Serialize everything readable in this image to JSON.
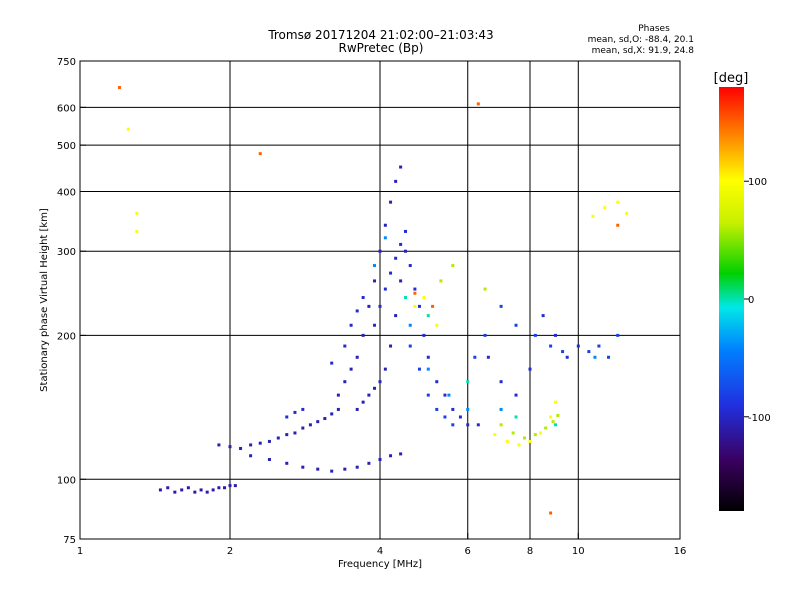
{
  "header": {
    "title": "Tromsø 20171204 21:02:00–21:03:43",
    "subtitle": "RwPretec (Bp)",
    "phases_title": "Phases",
    "phase_o": "mean, sd,O:  -88.4, 20.1",
    "phase_x": "mean, sd,X:  91.9, 24.8"
  },
  "chart_data": {
    "type": "scatter",
    "xlabel": "Frequency [MHz]",
    "ylabel": "Stationary phase Virtual Height [km]",
    "xscale": "log",
    "yscale": "log",
    "xlim": [
      1,
      16
    ],
    "ylim": [
      75,
      750
    ],
    "x_ticks": [
      1,
      2,
      4,
      6,
      8,
      10,
      16
    ],
    "y_ticks": [
      75,
      100,
      200,
      300,
      400,
      500,
      600,
      750
    ],
    "x_grid": [
      2,
      4,
      6,
      8,
      10
    ],
    "y_grid": [
      100,
      200,
      300,
      400,
      500,
      600
    ],
    "grid": true,
    "colorbar": {
      "label": "[deg]",
      "range": [
        -180,
        180
      ],
      "ticks": [
        -100,
        0,
        100
      ]
    },
    "series": [
      {
        "phase": -110,
        "points": [
          [
            1.45,
            95
          ],
          [
            1.5,
            96
          ],
          [
            1.6,
            95
          ],
          [
            1.7,
            94
          ],
          [
            1.8,
            94
          ],
          [
            1.9,
            96
          ],
          [
            2.0,
            97
          ],
          [
            1.55,
            94
          ],
          [
            1.65,
            96
          ],
          [
            1.75,
            95
          ],
          [
            1.85,
            95
          ],
          [
            1.95,
            96
          ],
          [
            2.05,
            97
          ]
        ]
      },
      {
        "phase": -105,
        "points": [
          [
            1.9,
            118
          ],
          [
            2.0,
            117
          ],
          [
            2.1,
            116
          ],
          [
            2.2,
            118
          ],
          [
            2.3,
            119
          ],
          [
            2.4,
            120
          ],
          [
            2.5,
            122
          ],
          [
            2.6,
            124
          ],
          [
            2.7,
            125
          ],
          [
            2.8,
            128
          ],
          [
            2.9,
            130
          ],
          [
            3.0,
            132
          ],
          [
            3.1,
            134
          ],
          [
            3.2,
            137
          ],
          [
            3.3,
            140
          ],
          [
            2.2,
            112
          ],
          [
            2.4,
            110
          ],
          [
            2.6,
            108
          ],
          [
            2.8,
            106
          ],
          [
            3.0,
            105
          ],
          [
            3.2,
            104
          ],
          [
            3.4,
            105
          ],
          [
            3.6,
            106
          ],
          [
            3.8,
            108
          ],
          [
            4.0,
            110
          ],
          [
            4.2,
            112
          ],
          [
            4.4,
            113
          ],
          [
            3.3,
            150
          ],
          [
            3.4,
            160
          ],
          [
            3.5,
            170
          ],
          [
            3.6,
            180
          ],
          [
            3.7,
            200
          ],
          [
            3.8,
            230
          ],
          [
            3.9,
            260
          ],
          [
            4.0,
            300
          ],
          [
            4.1,
            340
          ],
          [
            4.2,
            380
          ],
          [
            4.3,
            420
          ],
          [
            4.4,
            450
          ],
          [
            3.6,
            140
          ],
          [
            3.7,
            145
          ],
          [
            3.8,
            150
          ],
          [
            3.9,
            155
          ],
          [
            4.0,
            160
          ],
          [
            4.1,
            170
          ],
          [
            4.2,
            190
          ],
          [
            4.3,
            220
          ],
          [
            4.4,
            260
          ],
          [
            4.5,
            300
          ]
        ]
      },
      {
        "phase": -95,
        "points": [
          [
            2.6,
            135
          ],
          [
            2.7,
            138
          ],
          [
            2.8,
            140
          ],
          [
            3.2,
            175
          ],
          [
            3.4,
            190
          ],
          [
            3.5,
            210
          ],
          [
            3.6,
            225
          ],
          [
            3.7,
            240
          ],
          [
            3.9,
            210
          ],
          [
            4.0,
            230
          ],
          [
            4.1,
            250
          ],
          [
            4.2,
            270
          ],
          [
            4.3,
            290
          ],
          [
            4.4,
            310
          ],
          [
            4.5,
            330
          ],
          [
            4.6,
            280
          ],
          [
            4.7,
            250
          ],
          [
            4.8,
            230
          ],
          [
            4.9,
            200
          ],
          [
            5.0,
            180
          ],
          [
            5.2,
            160
          ],
          [
            5.4,
            150
          ],
          [
            5.6,
            140
          ],
          [
            5.8,
            135
          ],
          [
            6.0,
            130
          ],
          [
            6.3,
            130
          ],
          [
            6.6,
            180
          ],
          [
            7.0,
            160
          ],
          [
            7.5,
            150
          ],
          [
            8.0,
            170
          ],
          [
            8.5,
            220
          ],
          [
            9.0,
            200
          ],
          [
            9.5,
            180
          ],
          [
            10.0,
            190
          ]
        ]
      },
      {
        "phase": -80,
        "points": [
          [
            4.6,
            190
          ],
          [
            4.8,
            170
          ],
          [
            5.0,
            150
          ],
          [
            5.2,
            140
          ],
          [
            5.4,
            135
          ],
          [
            5.6,
            130
          ],
          [
            6.2,
            180
          ],
          [
            6.5,
            200
          ],
          [
            7.0,
            230
          ],
          [
            7.5,
            210
          ],
          [
            8.2,
            200
          ],
          [
            8.8,
            190
          ],
          [
            9.3,
            185
          ],
          [
            10.5,
            185
          ],
          [
            11.0,
            190
          ],
          [
            11.5,
            180
          ],
          [
            12.0,
            200
          ]
        ]
      },
      {
        "phase": -40,
        "points": [
          [
            3.9,
            280
          ],
          [
            4.1,
            320
          ],
          [
            4.6,
            210
          ],
          [
            5.0,
            170
          ],
          [
            5.5,
            150
          ],
          [
            6.0,
            140
          ],
          [
            7.0,
            140
          ],
          [
            10.8,
            180
          ]
        ]
      },
      {
        "phase": 0,
        "points": [
          [
            4.5,
            240
          ],
          [
            5.0,
            220
          ],
          [
            6.0,
            160
          ],
          [
            7.5,
            135
          ],
          [
            9.0,
            130
          ]
        ]
      },
      {
        "phase": 60,
        "points": [
          [
            5.3,
            260
          ],
          [
            5.6,
            280
          ],
          [
            6.5,
            250
          ],
          [
            7.0,
            130
          ],
          [
            7.4,
            125
          ],
          [
            7.8,
            122
          ],
          [
            8.2,
            124
          ],
          [
            8.6,
            128
          ],
          [
            8.9,
            132
          ],
          [
            9.1,
            136
          ]
        ]
      },
      {
        "phase": 100,
        "points": [
          [
            4.7,
            230
          ],
          [
            4.9,
            240
          ],
          [
            5.2,
            210
          ],
          [
            6.8,
            124
          ],
          [
            7.2,
            120
          ],
          [
            7.6,
            118
          ],
          [
            8.0,
            120
          ],
          [
            8.4,
            125
          ],
          [
            8.8,
            135
          ],
          [
            9.0,
            145
          ],
          [
            10.7,
            355
          ],
          [
            11.3,
            370
          ],
          [
            12.0,
            380
          ],
          [
            12.5,
            360
          ],
          [
            1.3,
            360
          ],
          [
            1.3,
            330
          ],
          [
            1.25,
            540
          ]
        ]
      },
      {
        "phase": 150,
        "points": [
          [
            1.2,
            660
          ],
          [
            2.3,
            480
          ],
          [
            4.7,
            245
          ],
          [
            5.1,
            230
          ],
          [
            8.8,
            85
          ],
          [
            6.3,
            610
          ],
          [
            12.0,
            340
          ]
        ]
      }
    ]
  }
}
